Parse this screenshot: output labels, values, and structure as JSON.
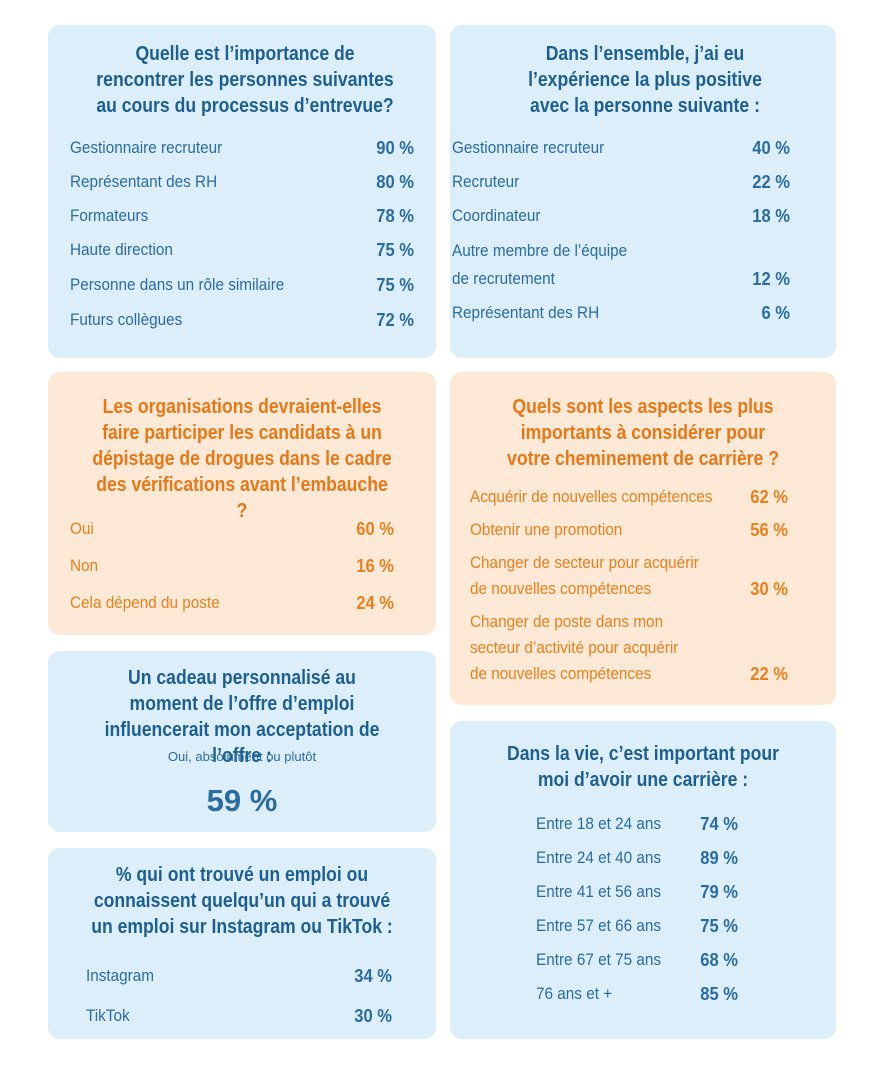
{
  "card1": {
    "title": "Quelle est l’importance de rencontrer les personnes suivantes au cours du processus d’entrevue?",
    "rows": [
      {
        "label": "Gestionnaire recruteur",
        "value": "90 %"
      },
      {
        "label": "Représentant des RH",
        "value": "80 %"
      },
      {
        "label": "Formateurs",
        "value": "78 %"
      },
      {
        "label": "Haute direction",
        "value": "75 %"
      },
      {
        "label": "Personne dans un rôle similaire",
        "value": "75 %"
      },
      {
        "label": "Futurs collègues",
        "value": "72 %"
      }
    ]
  },
  "card2": {
    "title": "Dans l’ensemble, j’ai eu l’expérience la plus positive avec la personne suivante :",
    "rows": [
      {
        "label": "Gestionnaire recruteur",
        "value": "40 %"
      },
      {
        "label": "Recruteur",
        "value": "22 %"
      },
      {
        "label": "Coordinateur",
        "value": "18 %"
      },
      {
        "label_line1": "Autre membre de l’équipe",
        "label_line2": "de recrutement",
        "value": "12 %"
      },
      {
        "label": "Représentant des RH",
        "value": "6 %"
      }
    ]
  },
  "card3": {
    "title": "Les organisations devraient-elles faire participer les candidats à un dépistage de drogues dans le cadre des vérifications avant l’embauche ?",
    "rows": [
      {
        "label": "Oui",
        "value": "60 %"
      },
      {
        "label": "Non",
        "value": "16 %"
      },
      {
        "label": "Cela dépend du poste",
        "value": "24 %"
      }
    ]
  },
  "card4": {
    "title": "Quels sont les aspects les plus importants à considérer pour votre cheminement de carrière ?",
    "rows": [
      {
        "label": "Acquérir de nouvelles compétences",
        "value": "62 %"
      },
      {
        "label": "Obtenir une promotion",
        "value": "56 %"
      },
      {
        "label_line1": "Changer de secteur pour acquérir",
        "label_line2": "de nouvelles compétences",
        "value": "30 %"
      },
      {
        "label_line1": "Changer de poste dans mon",
        "label_line2": "secteur d’activité pour acquérir",
        "label_line3": "de nouvelles compétences",
        "value": "22 %"
      }
    ]
  },
  "card5": {
    "title": "Un cadeau personnalisé au moment de l’offre d’emploi influencerait mon acceptation de l’offre :",
    "subtitle": "Oui, absolument ou plutôt",
    "value": "59 %"
  },
  "card6": {
    "title": "% qui ont trouvé un emploi ou connaissent quelqu’un qui a trouvé un emploi sur Instagram ou TikTok :",
    "rows": [
      {
        "label": "Instagram",
        "value": "34 %"
      },
      {
        "label": "TikTok",
        "value": "30 %"
      }
    ]
  },
  "card7": {
    "title": "Dans la vie, c’est important pour moi d’avoir une carrière :",
    "rows": [
      {
        "label": "Entre 18 et 24 ans",
        "value": "74 %"
      },
      {
        "label": "Entre 24 et 40 ans",
        "value": "89 %"
      },
      {
        "label": "Entre 41 et 56 ans",
        "value": "79 %"
      },
      {
        "label": "Entre 57 et 66 ans",
        "value": "75 %"
      },
      {
        "label": "Entre 67 et 75 ans",
        "value": "68 %"
      },
      {
        "label": "76 ans et +",
        "value": "85 %"
      }
    ]
  }
}
